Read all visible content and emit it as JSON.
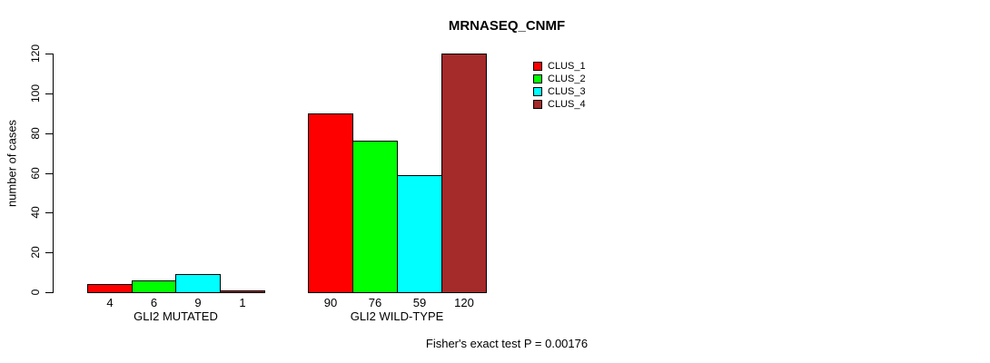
{
  "chart_data": {
    "type": "bar",
    "title": "MRNASEQ_CNMF",
    "ylabel": "number of cases",
    "xlabel": "",
    "footer": "Fisher's exact test P = 0.00176",
    "ylim": [
      0,
      120
    ],
    "yticks": [
      0,
      20,
      40,
      60,
      80,
      100,
      120
    ],
    "grid": false,
    "legend_position": "top-right",
    "show_value_labels": true,
    "categories": [
      "GLI2 MUTATED",
      "GLI2 WILD-TYPE"
    ],
    "series": [
      {
        "name": "CLUS_1",
        "color": "#FF0000",
        "values": [
          4,
          90
        ]
      },
      {
        "name": "CLUS_2",
        "color": "#00FF00",
        "values": [
          6,
          76
        ]
      },
      {
        "name": "CLUS_3",
        "color": "#00FFFF",
        "values": [
          9,
          59
        ]
      },
      {
        "name": "CLUS_4",
        "color": "#A52A2A",
        "values": [
          1,
          120
        ]
      }
    ],
    "value_labels": [
      [
        4,
        6,
        9,
        1
      ],
      [
        90,
        76,
        59,
        120
      ]
    ],
    "colors": {
      "axis": "#000000",
      "text": "#000000",
      "background": "#FFFFFF"
    }
  }
}
